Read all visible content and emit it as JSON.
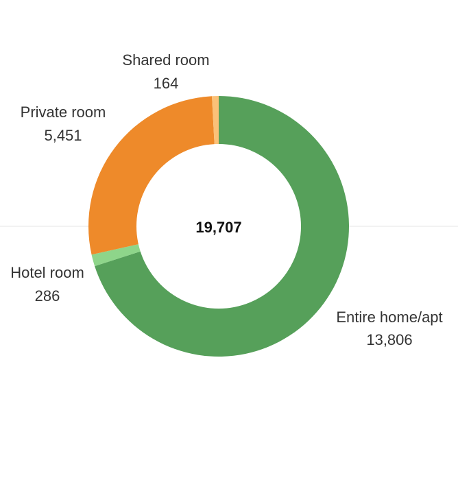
{
  "chart_data": {
    "type": "pie",
    "variant": "donut",
    "total": "19,707",
    "slices": [
      {
        "label": "Entire home/apt",
        "value": 13806,
        "value_text": "13,806",
        "color": "#56a05a"
      },
      {
        "label": "Hotel room",
        "value": 286,
        "value_text": "286",
        "color": "#8ed58a"
      },
      {
        "label": "Private room",
        "value": 5451,
        "value_text": "5,451",
        "color": "#ee8a2a"
      },
      {
        "label": "Shared room",
        "value": 164,
        "value_text": "164",
        "color": "#fbc178"
      }
    ],
    "legend": "none",
    "grid": false
  }
}
